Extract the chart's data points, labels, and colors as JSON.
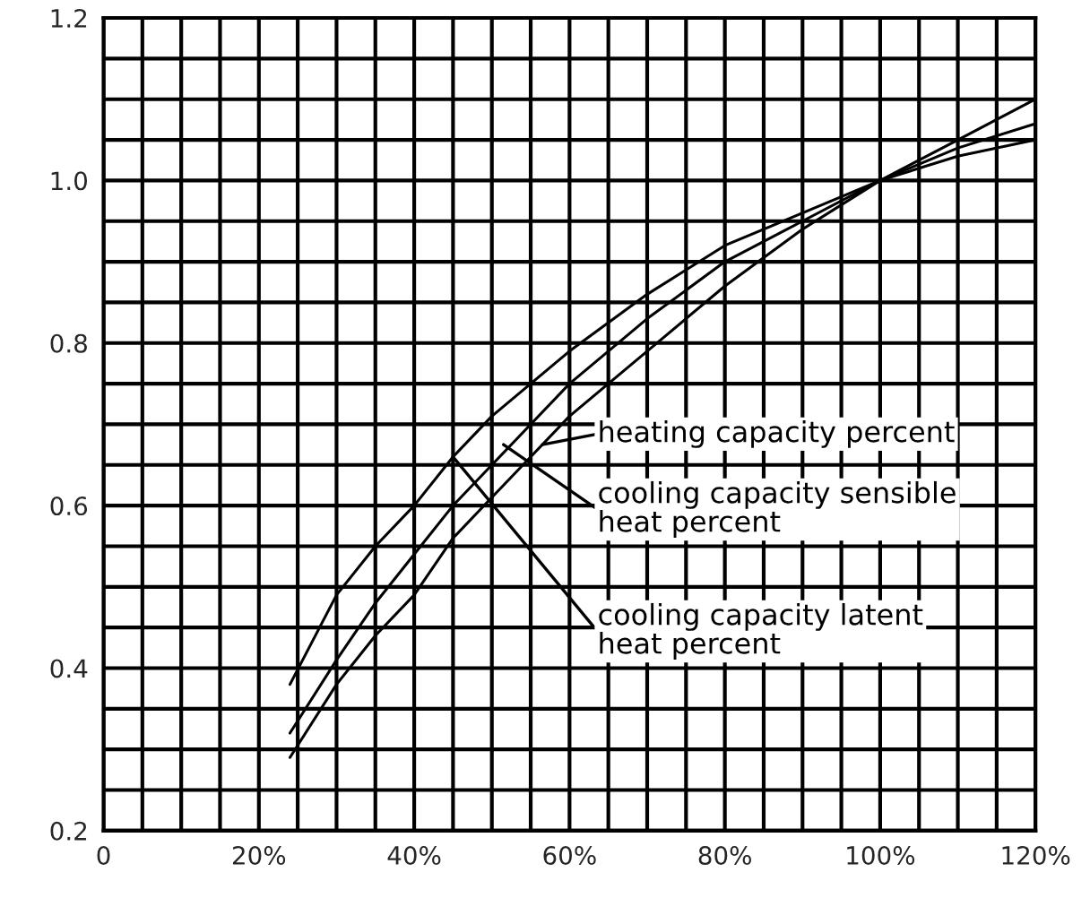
{
  "chart_data": {
    "type": "line",
    "x": [
      24,
      30,
      35,
      40,
      45,
      50,
      55,
      60,
      70,
      80,
      90,
      100,
      110,
      120
    ],
    "series": [
      {
        "color": "#000000",
        "values": [
          0.38,
          0.49,
          0.55,
          0.6,
          0.66,
          0.71,
          0.75,
          0.79,
          0.86,
          0.92,
          0.96,
          1.0,
          1.03,
          1.05
        ]
      },
      {
        "color": "#000000",
        "values": [
          0.32,
          0.41,
          0.48,
          0.54,
          0.6,
          0.65,
          0.7,
          0.75,
          0.83,
          0.9,
          0.95,
          1.0,
          1.04,
          1.07
        ]
      },
      {
        "color": "#000000",
        "values": [
          0.29,
          0.38,
          0.44,
          0.49,
          0.56,
          0.61,
          0.66,
          0.71,
          0.79,
          0.87,
          0.94,
          1.0,
          1.05,
          1.1
        ]
      }
    ],
    "annotations": [
      {
        "text": "heating capacity percent",
        "x": 56.5,
        "y": 0.675
      },
      {
        "text": "cooling capacity sensible\nheat percent",
        "x": 51.5,
        "y": 0.675
      },
      {
        "text": "cooling capacity latent\nheat percent",
        "x": 45,
        "y": 0.66
      }
    ],
    "xlim": [
      0,
      120
    ],
    "xticks": [
      0,
      {
        "value": 5,
        "label": null
      },
      {
        "value": 10,
        "label": null
      },
      {
        "value": 15,
        "label": null
      },
      {
        "value": 20,
        "label": "20%"
      },
      {
        "value": 25,
        "label": null
      },
      {
        "value": 30,
        "label": null
      },
      {
        "value": 35,
        "label": null
      },
      {
        "value": 40,
        "label": "40%"
      },
      {
        "value": 45,
        "label": null
      },
      {
        "value": 50,
        "label": null
      },
      {
        "value": 55,
        "label": null
      },
      {
        "value": 60,
        "label": "60%"
      },
      {
        "value": 65,
        "label": null
      },
      {
        "value": 70,
        "label": null
      },
      {
        "value": 75,
        "label": null
      },
      {
        "value": 80,
        "label": "80%"
      },
      {
        "value": 85,
        "label": null
      },
      {
        "value": 90,
        "label": null
      },
      {
        "value": 95,
        "label": null
      },
      {
        "value": 100,
        "label": "100%"
      },
      {
        "value": 105,
        "label": null
      },
      {
        "value": 110,
        "label": null
      },
      {
        "value": 115,
        "label": null
      },
      {
        "value": 120,
        "label": "120%"
      }
    ],
    "ylim": [
      0.2,
      1.2
    ],
    "yticks": [
      0.2,
      {
        "value": 0.25,
        "label": null
      },
      {
        "value": 0.3,
        "label": null
      },
      {
        "value": 0.35,
        "label": null
      },
      0.4,
      {
        "value": 0.45,
        "label": null
      },
      {
        "value": 0.5,
        "label": null
      },
      {
        "value": 0.55,
        "label": null
      },
      0.6,
      {
        "value": 0.65,
        "label": null
      },
      {
        "value": 0.7,
        "label": null
      },
      {
        "value": 0.75,
        "label": null
      },
      0.8,
      {
        "value": 0.85,
        "label": null
      },
      {
        "value": 0.9,
        "label": null
      },
      {
        "value": 0.95,
        "label": null
      },
      {
        "value": 1.0,
        "label": "1.0"
      },
      {
        "value": 1.05,
        "label": null
      },
      {
        "value": 1.1,
        "label": null
      },
      {
        "value": 1.15,
        "label": null
      },
      1.2
    ],
    "grid": true,
    "marker": "none",
    "line_style": "solid"
  }
}
